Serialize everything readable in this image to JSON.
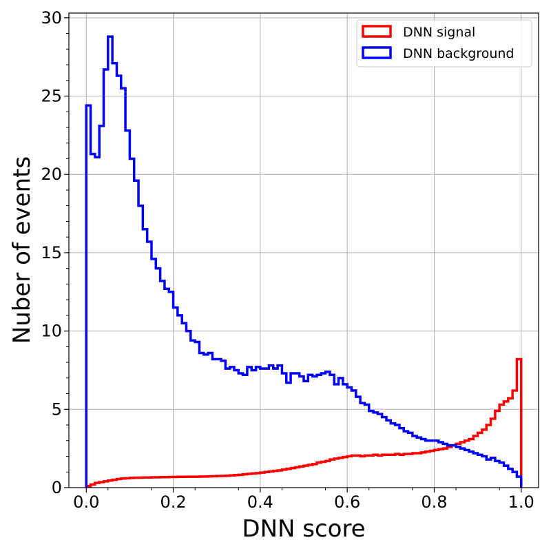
{
  "chart_data": {
    "type": "histogram",
    "title": "",
    "xlabel": "DNN score",
    "ylabel": "Nuber of events",
    "xlim": [
      -0.04,
      1.04
    ],
    "ylim": [
      0,
      30.3
    ],
    "xticks": [
      0.0,
      0.2,
      0.4,
      0.6,
      0.8,
      1.0
    ],
    "xtick_labels": [
      "0.0",
      "0.2",
      "0.4",
      "0.6",
      "0.8",
      "1.0"
    ],
    "yticks": [
      0,
      5,
      10,
      15,
      20,
      25,
      30
    ],
    "ytick_labels": [
      "0",
      "5",
      "10",
      "15",
      "20",
      "25",
      "30"
    ],
    "grid": true,
    "legend_position": "top-right",
    "bins": {
      "start": 0.0,
      "end": 1.0,
      "count": 100
    },
    "series": [
      {
        "name": "DNN signal",
        "color": "#ff0000",
        "values": [
          0.1,
          0.2,
          0.3,
          0.35,
          0.4,
          0.45,
          0.5,
          0.55,
          0.58,
          0.6,
          0.62,
          0.63,
          0.64,
          0.65,
          0.65,
          0.66,
          0.66,
          0.67,
          0.67,
          0.68,
          0.68,
          0.69,
          0.69,
          0.7,
          0.7,
          0.7,
          0.71,
          0.71,
          0.72,
          0.73,
          0.74,
          0.75,
          0.76,
          0.78,
          0.8,
          0.82,
          0.85,
          0.88,
          0.9,
          0.93,
          0.96,
          1.0,
          1.03,
          1.07,
          1.1,
          1.15,
          1.2,
          1.25,
          1.3,
          1.35,
          1.4,
          1.45,
          1.5,
          1.6,
          1.65,
          1.7,
          1.8,
          1.85,
          1.9,
          1.95,
          2.0,
          2.05,
          2.05,
          2.0,
          2.05,
          2.05,
          2.1,
          2.05,
          2.1,
          2.1,
          2.1,
          2.15,
          2.1,
          2.15,
          2.15,
          2.2,
          2.2,
          2.25,
          2.3,
          2.35,
          2.4,
          2.45,
          2.5,
          2.6,
          2.7,
          2.8,
          2.9,
          3.0,
          3.1,
          3.3,
          3.5,
          3.7,
          4.0,
          4.4,
          4.9,
          5.3,
          5.5,
          5.7,
          6.2,
          8.2
        ]
      },
      {
        "name": "DNN background",
        "color": "#0000ff",
        "values": [
          24.4,
          21.3,
          21.1,
          23.1,
          26.7,
          28.8,
          27.1,
          26.3,
          25.5,
          22.8,
          21.0,
          19.6,
          18.0,
          16.5,
          15.7,
          14.6,
          14.0,
          13.2,
          12.7,
          12.5,
          11.5,
          11.0,
          10.5,
          10.0,
          9.4,
          9.3,
          8.6,
          8.5,
          8.6,
          8.2,
          8.2,
          8.1,
          7.6,
          7.7,
          7.5,
          7.3,
          7.2,
          7.7,
          7.5,
          7.7,
          7.6,
          7.6,
          7.8,
          7.6,
          7.8,
          7.3,
          6.7,
          7.3,
          7.3,
          7.1,
          6.8,
          7.2,
          7.1,
          7.2,
          7.3,
          7.4,
          7.2,
          6.6,
          7.0,
          6.6,
          6.4,
          6.2,
          5.8,
          5.4,
          5.3,
          4.9,
          4.8,
          4.7,
          4.5,
          4.3,
          4.1,
          4.0,
          3.8,
          3.6,
          3.5,
          3.3,
          3.2,
          3.1,
          3.0,
          3.0,
          3.0,
          2.9,
          2.8,
          2.7,
          2.7,
          2.6,
          2.5,
          2.4,
          2.3,
          2.2,
          2.1,
          2.0,
          1.8,
          1.9,
          1.7,
          1.6,
          1.4,
          1.2,
          1.0,
          0.7
        ]
      }
    ]
  }
}
